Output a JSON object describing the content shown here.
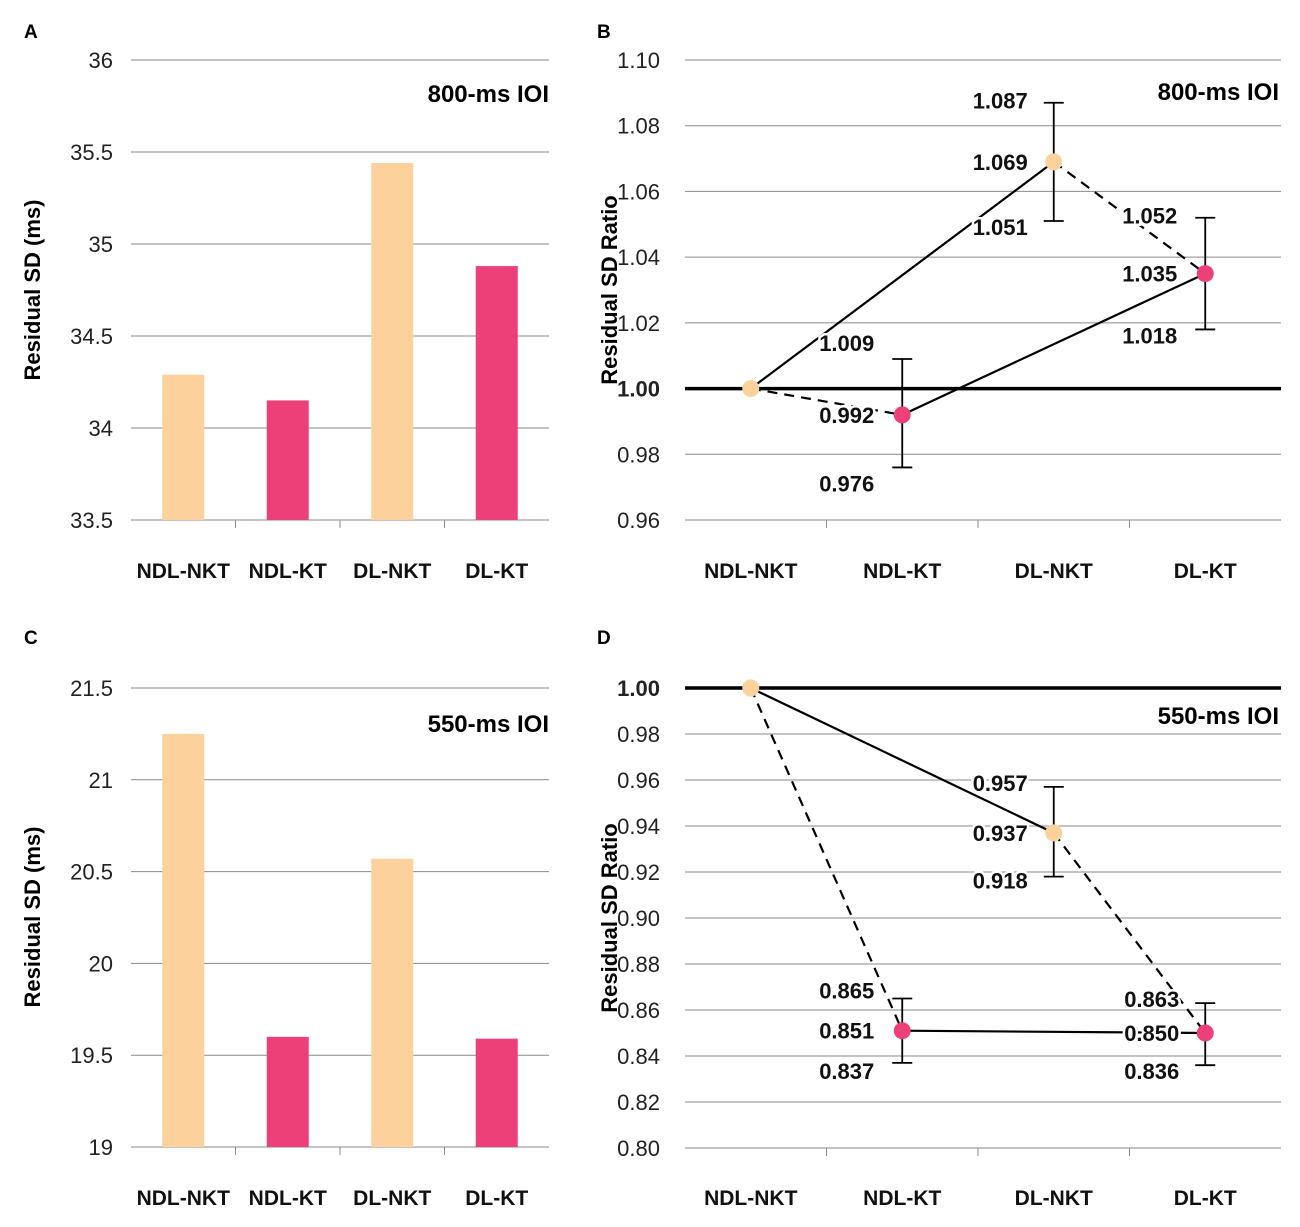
{
  "chart_data": [
    {
      "panel": "A",
      "type": "bar",
      "annotation": "800-ms IOI",
      "ylabel": "Residual SD (ms)",
      "categories": [
        "NDL-NKT",
        "NDL-KT",
        "DL-NKT",
        "DL-KT"
      ],
      "values": [
        34.29,
        34.15,
        35.44,
        34.88
      ],
      "bar_colors": [
        "#fdd19c",
        "#ed4079",
        "#fdd19c",
        "#ed4079"
      ],
      "ylim": [
        33.5,
        36
      ],
      "yticks": [
        "33.5",
        "34",
        "34.5",
        "35",
        "35.5",
        "36"
      ],
      "grid": true
    },
    {
      "panel": "B",
      "type": "line",
      "annotation": "800-ms IOI",
      "ylabel": "Residual SD Ratio",
      "categories": [
        "NDL-NKT",
        "NDL-KT",
        "DL-NKT",
        "DL-KT"
      ],
      "points": [
        {
          "category": "NDL-NKT",
          "value": 1.0,
          "color": "#fdd19c"
        },
        {
          "category": "NDL-KT",
          "value": 0.992,
          "upper": 1.009,
          "lower": 0.976,
          "color": "#ed4079",
          "value_label": "0.992",
          "upper_label": "1.009",
          "lower_label": "0.976"
        },
        {
          "category": "DL-NKT",
          "value": 1.069,
          "upper": 1.087,
          "lower": 1.051,
          "color": "#fdd19c",
          "value_label": "1.069",
          "upper_label": "1.087",
          "lower_label": "1.051"
        },
        {
          "category": "DL-KT",
          "value": 1.035,
          "upper": 1.052,
          "lower": 1.018,
          "color": "#ed4079",
          "value_label": "1.035",
          "upper_label": "1.052",
          "lower_label": "1.018"
        }
      ],
      "links": [
        {
          "from": "NDL-NKT",
          "to": "DL-NKT",
          "style": "solid"
        },
        {
          "from": "NDL-KT",
          "to": "DL-KT",
          "style": "solid"
        },
        {
          "from": "NDL-NKT",
          "to": "NDL-KT",
          "style": "dashed"
        },
        {
          "from": "DL-NKT",
          "to": "DL-KT",
          "style": "dashed"
        }
      ],
      "reference_line": 1.0,
      "ylim": [
        0.96,
        1.1
      ],
      "yticks": [
        "0.96",
        "0.98",
        "1.00",
        "1.02",
        "1.04",
        "1.06",
        "1.08",
        "1.10"
      ],
      "grid": true
    },
    {
      "panel": "C",
      "type": "bar",
      "annotation": "550-ms IOI",
      "ylabel": "Residual SD (ms)",
      "categories": [
        "NDL-NKT",
        "NDL-KT",
        "DL-NKT",
        "DL-KT"
      ],
      "values": [
        21.25,
        19.6,
        20.57,
        19.59
      ],
      "bar_colors": [
        "#fdd19c",
        "#ed4079",
        "#fdd19c",
        "#ed4079"
      ],
      "ylim": [
        19,
        21.5
      ],
      "yticks": [
        "19",
        "19.5",
        "20",
        "20.5",
        "21",
        "21.5"
      ],
      "grid": true
    },
    {
      "panel": "D",
      "type": "line",
      "annotation": "550-ms IOI",
      "ylabel": "Residual SD Ratio",
      "categories": [
        "NDL-NKT",
        "NDL-KT",
        "DL-NKT",
        "DL-KT"
      ],
      "points": [
        {
          "category": "NDL-NKT",
          "value": 1.0,
          "color": "#fdd19c"
        },
        {
          "category": "NDL-KT",
          "value": 0.851,
          "upper": 0.865,
          "lower": 0.837,
          "color": "#ed4079",
          "value_label": "0.851",
          "upper_label": "0.865",
          "lower_label": "0.837"
        },
        {
          "category": "DL-NKT",
          "value": 0.937,
          "upper": 0.957,
          "lower": 0.918,
          "color": "#fdd19c",
          "value_label": "0.937",
          "upper_label": "0.957",
          "lower_label": "0.918"
        },
        {
          "category": "DL-KT",
          "value": 0.85,
          "upper": 0.863,
          "lower": 0.836,
          "color": "#ed4079",
          "value_label": "0.850",
          "upper_label": "0.863",
          "lower_label": "0.836"
        }
      ],
      "links": [
        {
          "from": "NDL-NKT",
          "to": "DL-NKT",
          "style": "solid"
        },
        {
          "from": "NDL-KT",
          "to": "DL-KT",
          "style": "solid"
        },
        {
          "from": "NDL-NKT",
          "to": "NDL-KT",
          "style": "dashed"
        },
        {
          "from": "DL-NKT",
          "to": "DL-KT",
          "style": "dashed"
        }
      ],
      "reference_line": 1.0,
      "ylim": [
        0.8,
        1.0
      ],
      "yticks": [
        "0.80",
        "0.82",
        "0.84",
        "0.86",
        "0.88",
        "0.90",
        "0.92",
        "0.94",
        "0.96",
        "0.98",
        "1.00"
      ],
      "grid": true
    }
  ]
}
